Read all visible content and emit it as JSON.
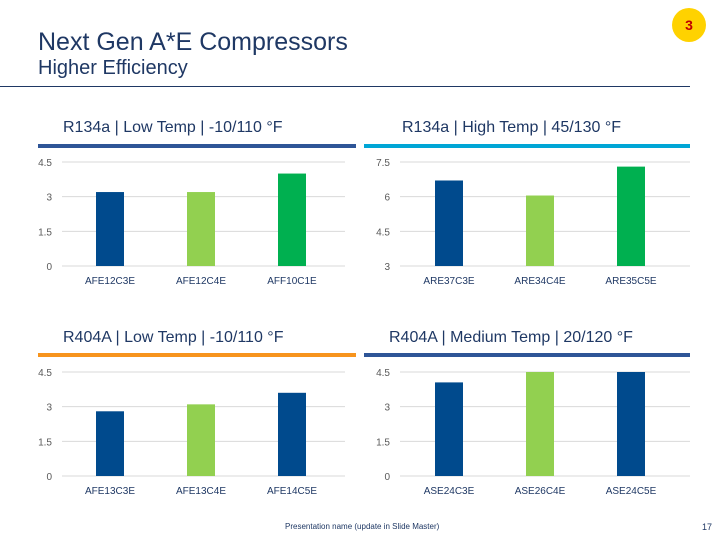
{
  "header": {
    "title": "Next Gen A*E Compressors",
    "subtitle": "Higher Efficiency",
    "badge": "3"
  },
  "footer": {
    "text": "Presentation name (update in Slide Master)",
    "page": "17"
  },
  "colors": {
    "dark_blue": "#004a8d",
    "light_green": "#92d050",
    "green": "#00b050",
    "underline_blue": "#2e5597",
    "underline_cyan": "#00a6d6",
    "underline_orange": "#f7941d",
    "gridline": "#d9d9d9"
  },
  "chart_data": [
    {
      "type": "bar",
      "title": "R134a | Low Temp | -10/110 °F",
      "categories": [
        "AFE12C3E",
        "AFE12C4E",
        "AFF10C1E"
      ],
      "values": [
        3.2,
        3.2,
        4.0
      ],
      "colors": [
        "#004a8d",
        "#92d050",
        "#00b050"
      ],
      "ylim": [
        0,
        4.5
      ],
      "yticks": [
        "4.5",
        "3",
        "1.5",
        "0"
      ],
      "xlabel": "",
      "ylabel": ""
    },
    {
      "type": "bar",
      "title": "R134a | High Temp | 45/130 °F",
      "categories": [
        "ARE37C3E",
        "ARE34C4E",
        "ARE35C5E"
      ],
      "values": [
        6.7,
        6.05,
        7.3
      ],
      "colors": [
        "#004a8d",
        "#92d050",
        "#00b050"
      ],
      "ylim": [
        3,
        7.5
      ],
      "yticks": [
        "7.5",
        "6",
        "4.5",
        "3"
      ],
      "xlabel": "",
      "ylabel": ""
    },
    {
      "type": "bar",
      "title": "R404A | Low Temp | -10/110 °F",
      "categories": [
        "AFE13C3E",
        "AFE13C4E",
        "AFE14C5E"
      ],
      "values": [
        2.8,
        3.1,
        3.6
      ],
      "colors": [
        "#004a8d",
        "#92d050",
        "#004a8d"
      ],
      "ylim": [
        0,
        4.5
      ],
      "yticks": [
        "4.5",
        "3",
        "1.5",
        "0"
      ],
      "xlabel": "",
      "ylabel": ""
    },
    {
      "type": "bar",
      "title": "R404A | Medium Temp | 20/120 °F",
      "categories": [
        "ASE24C3E",
        "ASE26C4E",
        "ASE24C5E"
      ],
      "values": [
        4.05,
        4.5,
        4.5
      ],
      "colors": [
        "#004a8d",
        "#92d050",
        "#004a8d"
      ],
      "ylim": [
        0,
        4.5
      ],
      "yticks": [
        "4.5",
        "3",
        "1.5",
        "0"
      ],
      "xlabel": "",
      "ylabel": ""
    }
  ]
}
